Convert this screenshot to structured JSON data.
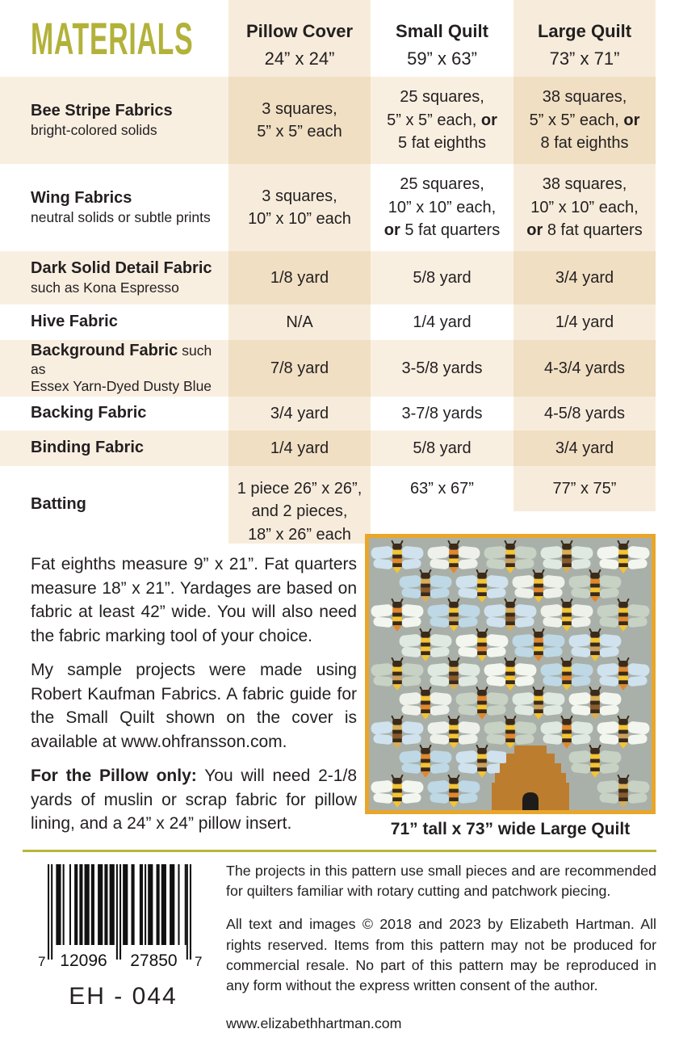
{
  "colors": {
    "accent_olive": "#b2b23a",
    "divider_olive": "#b9b53b",
    "text": "#231f20",
    "cream_column": "#f7ecdb",
    "cream_row": "#f9efe1",
    "cream_overlap": "#f0dfc3",
    "quilt_border": "#e9a62a",
    "quilt_background": "#a9b0a9",
    "bee_dark": "#3b2a19",
    "hive": "#bd7d2e",
    "hive_door": "#1d1c1a"
  },
  "header": {
    "title": "MATERIALS",
    "columns": [
      {
        "name": "Pillow Cover",
        "size": "24” x 24”"
      },
      {
        "name": "Small Quilt",
        "size": "59” x 63”"
      },
      {
        "name": "Large Quilt",
        "size": "73” x 71”"
      }
    ]
  },
  "table": {
    "rows": [
      {
        "label": "Bee Stripe Fabrics",
        "sub": "bright-colored solids",
        "sub_inline": false,
        "values": [
          "3 squares,\n5” x 5” each",
          "25 squares,\n5” x 5” each, **or**\n5 fat eighths",
          "38 squares,\n5” x 5” each, **or**\n8 fat eighths"
        ]
      },
      {
        "label": "Wing Fabrics",
        "sub": "neutral solids or subtle prints",
        "sub_inline": false,
        "values": [
          "3 squares,\n10” x 10” each",
          "25 squares,\n10” x 10” each,\n**or** 5 fat quarters",
          "38 squares,\n10” x 10” each,\n**or** 8 fat quarters"
        ]
      },
      {
        "label": "Dark Solid Detail Fabric",
        "sub": "such as Kona Espresso",
        "sub_inline": false,
        "values": [
          "1/8 yard",
          "5/8 yard",
          "3/4 yard"
        ]
      },
      {
        "label": "Hive Fabric",
        "sub": "",
        "sub_inline": false,
        "values": [
          "N/A",
          "1/4 yard",
          "1/4 yard"
        ]
      },
      {
        "label": "Background Fabric",
        "sub": "such as\nEssex Yarn-Dyed Dusty Blue",
        "sub_inline": true,
        "values": [
          "7/8 yard",
          "3-5/8 yards",
          "4-3/4 yards"
        ]
      },
      {
        "label": "Backing Fabric",
        "sub": "",
        "sub_inline": false,
        "values": [
          "3/4 yard",
          "3-7/8 yards",
          "4-5/8 yards"
        ]
      },
      {
        "label": "Binding Fabric",
        "sub": "",
        "sub_inline": false,
        "values": [
          "1/4 yard",
          "5/8 yard",
          "3/4 yard"
        ]
      },
      {
        "label": "Batting",
        "sub": "",
        "sub_inline": false,
        "values": [
          "1 piece 26” x 26”,\nand 2 pieces,\n18” x 26” each",
          "63” x 67”",
          "77” x 75”"
        ]
      }
    ]
  },
  "notes": {
    "p1": "Fat eighths measure 9” x 21”. Fat quarters measure 18” x 21”. Yardages are based on fabric at least 42” wide. You will also need the fabric marking tool of your choice.",
    "p2": "My sample projects were made using Robert Kaufman Fabrics. A fabric guide for the Small Quilt shown on the cover is available at www.ohfransson.com.",
    "p3": "**For the Pillow only:** You will need 2-1/8 yards of muslin or scrap fabric for pillow lining, and a 24” x 24” pillow insert."
  },
  "quilt": {
    "caption": "71” tall x 73” wide Large Quilt",
    "wing_colors": [
      "#cfe2ed",
      "#eef1ea",
      "#c7d1c4",
      "#dfe9e1",
      "#f3f5ef",
      "#bed8e5"
    ],
    "body_schemes": [
      [
        "#f4c433",
        "#e2882b"
      ],
      [
        "#e2882b",
        "#f4c433"
      ],
      [
        "#f4c433",
        "#caa05c"
      ],
      [
        "#d9ae56",
        "#8a5a2a"
      ],
      [
        "#f4c433",
        "#f4c433"
      ]
    ],
    "rows": [
      {
        "offset": false,
        "slots": [
          0,
          1,
          2,
          3,
          4
        ]
      },
      {
        "offset": true,
        "slots": [
          0,
          1,
          2,
          3
        ]
      },
      {
        "offset": false,
        "slots": [
          0,
          1,
          2,
          3,
          4
        ]
      },
      {
        "offset": true,
        "slots": [
          0,
          1,
          2,
          3
        ]
      },
      {
        "offset": false,
        "slots": [
          0,
          1,
          2,
          3,
          4
        ]
      },
      {
        "offset": true,
        "slots": [
          0,
          1,
          2,
          3
        ]
      },
      {
        "offset": false,
        "slots": [
          0,
          1,
          2,
          3,
          4
        ]
      },
      {
        "offset": true,
        "slots": [
          0,
          1,
          3
        ]
      },
      {
        "offset": false,
        "slots": [
          0,
          1,
          4
        ]
      }
    ]
  },
  "footer": {
    "note": "The projects in this pattern use small pieces and are recommended for quilters familiar with rotary cutting and patchwork piecing.",
    "copyright": "All text and images © 2018 and 2023 by Elizabeth Hartman. All rights reserved. Items from this pattern may not be produced for commercial resale. No part of this pattern may be reproduced in any form without the express written consent of the author.",
    "website": "www.elizabethhartman.com",
    "barcode": {
      "left_digit": "7",
      "group1": "12096",
      "group2": "27850",
      "right_digit": "7",
      "code": "EH - 044"
    }
  }
}
